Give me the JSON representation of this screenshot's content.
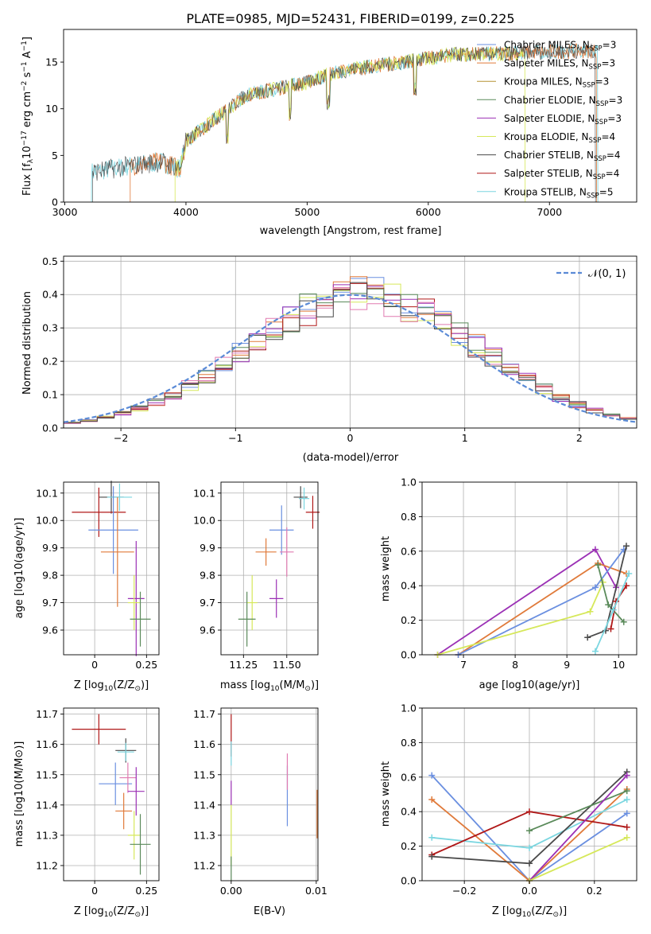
{
  "chart_data": [
    {
      "type": "line",
      "title": "PLATE=0985, MJD=52431, FIBERID=0199, z=0.225",
      "xlabel": "wavelength [Angstrom, rest frame]",
      "ylabel_pre": "Flux [f",
      "ylabel_sub": "λ",
      "ylabel_mid": "10",
      "ylabel_sup": "−17",
      "ylabel_post": " erg cm",
      "ylabel_sup2": "−2",
      "ylabel_post2": " s",
      "ylabel_sup3": "−1",
      "ylabel_post3": " A",
      "ylabel_sup4": "−1",
      "ylabel_end": "]",
      "xlim": [
        2990,
        7720
      ],
      "ylim": [
        0,
        18.5
      ],
      "xticks": [
        3000,
        4000,
        5000,
        6000,
        7000
      ],
      "yticks": [
        0,
        5,
        10,
        15
      ],
      "legend": [
        {
          "pre": "Chabrier MILES, N",
          "sub": "SSP",
          "post": "=3",
          "color": "#6a8fe0"
        },
        {
          "pre": "Salpeter MILES, N",
          "sub": "SSP",
          "post": "=3",
          "color": "#e07a3a"
        },
        {
          "pre": "Kroupa MILES, N",
          "sub": "SSP",
          "post": "=3",
          "color": "#b59433"
        },
        {
          "pre": "Chabrier ELODIE, N",
          "sub": "SSP",
          "post": "=3",
          "color": "#5a8a5a"
        },
        {
          "pre": "Salpeter ELODIE, N",
          "sub": "SSP",
          "post": "=3",
          "color": "#9b30b5"
        },
        {
          "pre": "Kroupa ELODIE, N",
          "sub": "SSP",
          "post": "=4",
          "color": "#d6e85a"
        },
        {
          "pre": "Chabrier STELIB, N",
          "sub": "SSP",
          "post": "=4",
          "color": "#4a4a4a"
        },
        {
          "pre": "Salpeter STELIB, N",
          "sub": "SSP",
          "post": "=4",
          "color": "#b01818"
        },
        {
          "pre": "Kroupa STELIB, N",
          "sub": "SSP",
          "post": "=5",
          "color": "#7ad6e0"
        }
      ],
      "series_ranges": [
        {
          "color": "#7ad6e0",
          "x": [
            3220,
            7400
          ]
        },
        {
          "color": "#e07a3a",
          "x": [
            3540,
            7390
          ]
        },
        {
          "color": "#d6e85a",
          "x": [
            3910,
            6800
          ]
        },
        {
          "color": "#4a4a4a",
          "x": [
            3230,
            7380
          ]
        }
      ],
      "continuum": [
        [
          3220,
          3.2
        ],
        [
          3500,
          3.8
        ],
        [
          3600,
          4.0
        ],
        [
          3800,
          4.3
        ],
        [
          3950,
          3.6
        ],
        [
          4000,
          6.5
        ],
        [
          4200,
          8.5
        ],
        [
          4500,
          11.5
        ],
        [
          4800,
          12.3
        ],
        [
          5000,
          12.8
        ],
        [
          5200,
          13.8
        ],
        [
          5400,
          14.3
        ],
        [
          5800,
          15.0
        ],
        [
          6200,
          15.8
        ],
        [
          6600,
          15.9
        ],
        [
          7000,
          16.1
        ],
        [
          7400,
          16.2
        ]
      ]
    },
    {
      "type": "line",
      "xlabel": "(data-model)/error",
      "ylabel": "Normed distribution",
      "xlim": [
        -2.5,
        2.5
      ],
      "ylim": [
        0,
        0.515
      ],
      "xticks": [
        -2,
        -1,
        0,
        1,
        2
      ],
      "yticks": [
        0.0,
        0.1,
        0.2,
        0.3,
        0.4,
        0.5
      ],
      "legend_label": "𝒩(0, 1)",
      "normal_color": "#5a8ad6",
      "hist_colors": [
        "#6a8fe0",
        "#e07a3a",
        "#9b30b5",
        "#d6e85a",
        "#b01818",
        "#5a8a5a",
        "#e07ab0",
        "#4a4a4a"
      ],
      "bins": 34
    },
    {
      "type": "scatter",
      "xlabel": "Z [log",
      "xlabel_sub": "10",
      "xlabel_post": "(Z/Z",
      "xlabel_sub2": "⊙",
      "xlabel_end": ")]",
      "ylabel": "age  [log10(age/yr)]",
      "xlim": [
        -0.15,
        0.31
      ],
      "ylim": [
        9.51,
        10.14
      ],
      "xticks": [
        0.0,
        0.25
      ],
      "yticks": [
        9.6,
        9.7,
        9.8,
        9.9,
        10.0,
        10.1
      ],
      "points": [
        {
          "x": 0.08,
          "y": 10.085,
          "dx": 0.06,
          "dy": 0.06,
          "color": "#4a4a4a"
        },
        {
          "x": 0.12,
          "y": 10.085,
          "dx": 0.06,
          "dy": 0.05,
          "color": "#7ad6e0"
        },
        {
          "x": 0.02,
          "y": 10.03,
          "dx": 0.13,
          "dy": 0.09,
          "color": "#b01818"
        },
        {
          "x": 0.09,
          "y": 9.965,
          "dx": 0.12,
          "dy": 0.16,
          "color": "#6a8fe0"
        },
        {
          "x": 0.11,
          "y": 9.885,
          "dx": 0.08,
          "dy": 0.2,
          "color": "#e07a3a"
        },
        {
          "x": 0.2,
          "y": 9.715,
          "dx": 0.04,
          "dy": 0.21,
          "color": "#9b30b5"
        },
        {
          "x": 0.19,
          "y": 9.7,
          "dx": 0.03,
          "dy": 0.1,
          "color": "#d6e85a"
        },
        {
          "x": 0.22,
          "y": 9.64,
          "dx": 0.05,
          "dy": 0.1,
          "color": "#5a8a5a"
        }
      ]
    },
    {
      "type": "scatter",
      "xlabel": "mass [log",
      "xlabel_sub": "10",
      "xlabel_post": "(M/M",
      "xlabel_sub2": "⊙",
      "xlabel_end": ")]",
      "xlim": [
        11.12,
        11.68
      ],
      "ylim": [
        9.51,
        10.14
      ],
      "xticks": [
        11.25,
        11.5
      ],
      "xtick_labels": [
        "11.25",
        "11.50"
      ],
      "yticks": [
        9.6,
        9.7,
        9.8,
        9.9,
        10.0,
        10.1
      ],
      "points": [
        {
          "x": 11.58,
          "y": 10.085,
          "dx": 0.04,
          "dy": 0.04,
          "color": "#4a4a4a"
        },
        {
          "x": 11.6,
          "y": 10.08,
          "dx": 0.03,
          "dy": 0.04,
          "color": "#7ad6e0"
        },
        {
          "x": 11.65,
          "y": 10.03,
          "dx": 0.04,
          "dy": 0.06,
          "color": "#b01818"
        },
        {
          "x": 11.47,
          "y": 9.965,
          "dx": 0.07,
          "dy": 0.09,
          "color": "#6a8fe0"
        },
        {
          "x": 11.38,
          "y": 9.885,
          "dx": 0.06,
          "dy": 0.05,
          "color": "#e07a3a"
        },
        {
          "x": 11.5,
          "y": 9.885,
          "dx": 0.04,
          "dy": 0.09,
          "color": "#e07ab0"
        },
        {
          "x": 11.44,
          "y": 9.715,
          "dx": 0.04,
          "dy": 0.07,
          "color": "#9b30b5"
        },
        {
          "x": 11.3,
          "y": 9.7,
          "dx": 0.03,
          "dy": 0.1,
          "color": "#d6e85a"
        },
        {
          "x": 11.27,
          "y": 9.64,
          "dx": 0.05,
          "dy": 0.1,
          "color": "#5a8a5a"
        }
      ]
    },
    {
      "type": "line",
      "xlabel": "age  [log10(age/yr)]",
      "ylabel": "mass weight",
      "xlim": [
        6.2,
        10.35
      ],
      "ylim": [
        0.0,
        1.0
      ],
      "xticks": [
        7,
        8,
        9,
        10
      ],
      "yticks": [
        0.0,
        0.2,
        0.4,
        0.6,
        0.8,
        1.0
      ],
      "series": [
        {
          "color": "#9b30b5",
          "x": [
            6.5,
            9.55,
            9.95
          ],
          "y": [
            0.0,
            0.61,
            0.39
          ]
        },
        {
          "color": "#e07a3a",
          "x": [
            6.9,
            9.6,
            10.15
          ],
          "y": [
            0.0,
            0.53,
            0.47
          ]
        },
        {
          "color": "#6a8fe0",
          "x": [
            6.9,
            9.55,
            10.1
          ],
          "y": [
            0.0,
            0.39,
            0.61
          ]
        },
        {
          "color": "#d6e85a",
          "x": [
            6.5,
            9.45,
            9.7
          ],
          "y": [
            0.0,
            0.25,
            0.42
          ]
        },
        {
          "color": "#5a8a5a",
          "x": [
            9.6,
            9.8,
            10.1
          ],
          "y": [
            0.52,
            0.29,
            0.19
          ]
        },
        {
          "color": "#4a4a4a",
          "x": [
            9.4,
            9.75,
            10.15
          ],
          "y": [
            0.1,
            0.14,
            0.63
          ]
        },
        {
          "color": "#b01818",
          "x": [
            9.85,
            9.95,
            10.15
          ],
          "y": [
            0.15,
            0.31,
            0.4
          ]
        },
        {
          "color": "#7ad6e0",
          "x": [
            9.55,
            9.9,
            10.2
          ],
          "y": [
            0.02,
            0.26,
            0.47
          ]
        }
      ]
    },
    {
      "type": "scatter",
      "xlabel": "Z [log",
      "xlabel_sub": "10",
      "xlabel_post": "(Z/Z",
      "xlabel_sub2": "⊙",
      "xlabel_end": ")]",
      "ylabel": "mass [log10(M/M⊙)]",
      "xlim": [
        -0.15,
        0.31
      ],
      "ylim": [
        11.15,
        11.72
      ],
      "xticks": [
        0.0,
        0.25
      ],
      "yticks": [
        11.2,
        11.3,
        11.4,
        11.5,
        11.6,
        11.7
      ],
      "points": [
        {
          "x": 0.02,
          "y": 11.65,
          "dx": 0.13,
          "dy": 0.05,
          "color": "#b01818"
        },
        {
          "x": 0.15,
          "y": 11.58,
          "dx": 0.05,
          "dy": 0.04,
          "color": "#4a4a4a"
        },
        {
          "x": 0.15,
          "y": 11.575,
          "dx": 0.04,
          "dy": 0.03,
          "color": "#7ad6e0"
        },
        {
          "x": 0.1,
          "y": 11.47,
          "dx": 0.08,
          "dy": 0.07,
          "color": "#6a8fe0"
        },
        {
          "x": 0.16,
          "y": 11.49,
          "dx": 0.04,
          "dy": 0.05,
          "color": "#e07ab0"
        },
        {
          "x": 0.14,
          "y": 11.38,
          "dx": 0.04,
          "dy": 0.06,
          "color": "#e07a3a"
        },
        {
          "x": 0.2,
          "y": 11.445,
          "dx": 0.04,
          "dy": 0.08,
          "color": "#9b30b5"
        },
        {
          "x": 0.19,
          "y": 11.3,
          "dx": 0.03,
          "dy": 0.08,
          "color": "#d6e85a"
        },
        {
          "x": 0.22,
          "y": 11.27,
          "dx": 0.05,
          "dy": 0.1,
          "color": "#5a8a5a"
        }
      ]
    },
    {
      "type": "scatter",
      "xlabel": "E(B-V)",
      "xlim": [
        -0.0012,
        0.0102
      ],
      "ylim": [
        11.15,
        11.72
      ],
      "xticks": [
        0.0,
        0.01
      ],
      "xtick_labels": [
        "0.00",
        "0.01"
      ],
      "yticks": [
        11.2,
        11.3,
        11.4,
        11.5,
        11.6,
        11.7
      ],
      "points": [
        {
          "x": 0.0,
          "y": 11.63,
          "dx": 0,
          "dy": 0.07,
          "color": "#b01818"
        },
        {
          "x": 0.0,
          "y": 11.57,
          "dx": 0,
          "dy": 0.04,
          "color": "#7ad6e0"
        },
        {
          "x": 0.0,
          "y": 11.44,
          "dx": 0,
          "dy": 0.04,
          "color": "#9b30b5"
        },
        {
          "x": 0.0,
          "y": 11.3,
          "dx": 0,
          "dy": 0.1,
          "color": "#d6e85a"
        },
        {
          "x": 0.0,
          "y": 11.19,
          "dx": 0,
          "dy": 0.04,
          "color": "#5a8a5a"
        },
        {
          "x": 0.0066,
          "y": 11.43,
          "dx": 0,
          "dy": 0.1,
          "color": "#6a8fe0"
        },
        {
          "x": 0.0066,
          "y": 11.51,
          "dx": 0,
          "dy": 0.06,
          "color": "#e07ab0"
        },
        {
          "x": 0.0101,
          "y": 11.37,
          "dx": 0,
          "dy": 0.08,
          "color": "#e07a3a"
        }
      ]
    },
    {
      "type": "line",
      "xlabel": "Z [log",
      "xlabel_sub": "10",
      "xlabel_post": "(Z/Z",
      "xlabel_sub2": "⊙",
      "xlabel_end": ")]",
      "ylabel": "mass weight",
      "xlim": [
        -0.33,
        0.33
      ],
      "ylim": [
        0.0,
        1.0
      ],
      "xticks": [
        -0.2,
        0.0,
        0.2
      ],
      "xtick_labels": [
        "−0.2",
        "0.0",
        "0.2"
      ],
      "yticks": [
        0.0,
        0.2,
        0.4,
        0.6,
        0.8,
        1.0
      ],
      "series": [
        {
          "color": "#6a8fe0",
          "x": [
            -0.3,
            0.0,
            0.3
          ],
          "y": [
            0.61,
            0.0,
            0.39
          ]
        },
        {
          "color": "#e07a3a",
          "x": [
            -0.3,
            0.0,
            0.3
          ],
          "y": [
            0.47,
            0.0,
            0.53
          ]
        },
        {
          "color": "#7ad6e0",
          "x": [
            -0.3,
            0.0,
            0.3
          ],
          "y": [
            0.25,
            0.19,
            0.47
          ]
        },
        {
          "color": "#b01818",
          "x": [
            -0.3,
            0.0,
            0.3
          ],
          "y": [
            0.15,
            0.4,
            0.31
          ]
        },
        {
          "color": "#4a4a4a",
          "x": [
            -0.3,
            0.0,
            0.3
          ],
          "y": [
            0.14,
            0.1,
            0.63
          ]
        },
        {
          "color": "#5a8a5a",
          "x": [
            0.0,
            0.3
          ],
          "y": [
            0.29,
            0.52
          ]
        },
        {
          "color": "#9b30b5",
          "x": [
            0.0,
            0.3
          ],
          "y": [
            0.0,
            0.61
          ]
        },
        {
          "color": "#d6e85a",
          "x": [
            0.0,
            0.3
          ],
          "y": [
            0.0,
            0.25
          ]
        }
      ]
    }
  ]
}
